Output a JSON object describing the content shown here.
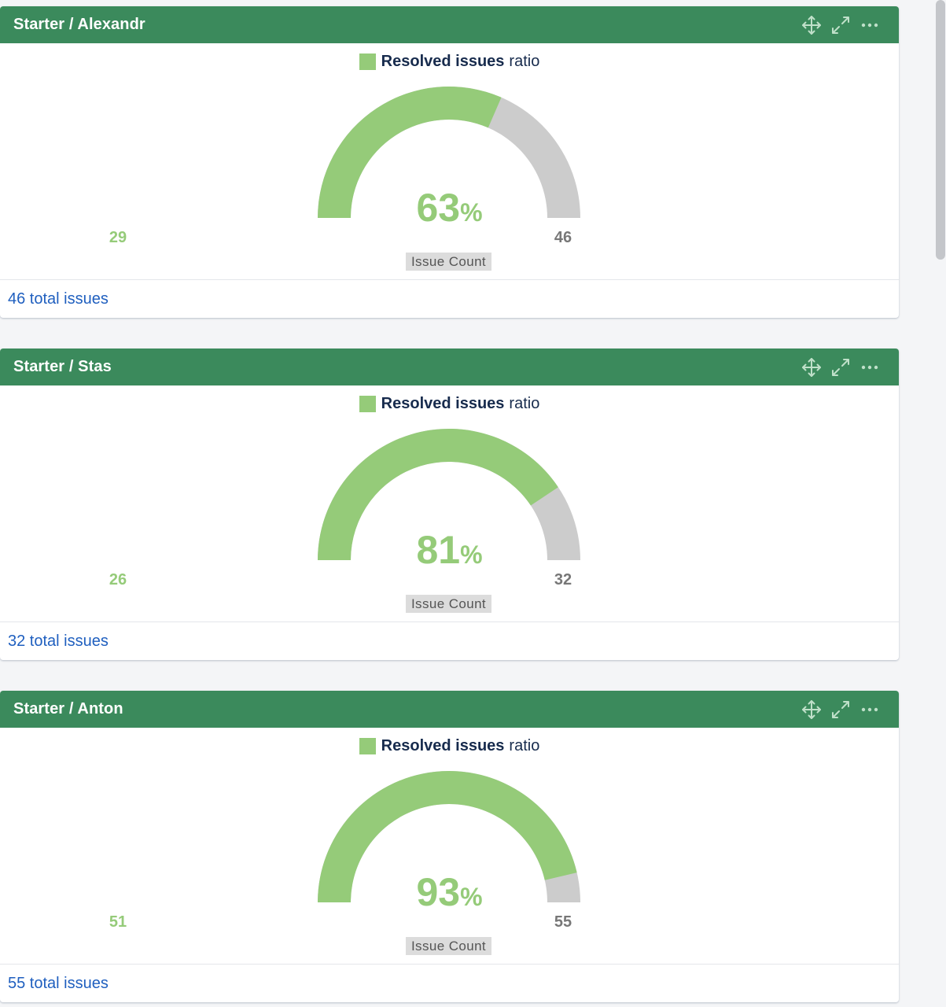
{
  "colors": {
    "header": "#3b8a5c",
    "resolved": "#95cb79",
    "remaining": "#cccccc",
    "link": "#1f5fbf"
  },
  "header_icons": [
    "move-icon",
    "expand-icon",
    "more-icon"
  ],
  "gadgets": [
    {
      "title": "Starter / Alexandr",
      "legend_strong": "Resolved issues",
      "legend_rest": "ratio",
      "percent": "63",
      "percent_sign": "%",
      "resolved": "29",
      "total": "46",
      "axis_label": "Issue Count",
      "footer_link": "46 total issues"
    },
    {
      "title": "Starter / Stas",
      "legend_strong": "Resolved issues",
      "legend_rest": "ratio",
      "percent": "81",
      "percent_sign": "%",
      "resolved": "26",
      "total": "32",
      "axis_label": "Issue Count",
      "footer_link": "32 total issues"
    },
    {
      "title": "Starter / Anton",
      "legend_strong": "Resolved issues",
      "legend_rest": "ratio",
      "percent": "93",
      "percent_sign": "%",
      "resolved": "51",
      "total": "55",
      "axis_label": "Issue Count",
      "footer_link": "55 total issues"
    }
  ],
  "chart_data": [
    {
      "type": "gauge",
      "title": "Resolved issues ratio",
      "min": 0,
      "max": 46,
      "value": 29,
      "percent": 63,
      "label": "Issue Count"
    },
    {
      "type": "gauge",
      "title": "Resolved issues ratio",
      "min": 0,
      "max": 32,
      "value": 26,
      "percent": 81,
      "label": "Issue Count"
    },
    {
      "type": "gauge",
      "title": "Resolved issues ratio",
      "min": 0,
      "max": 55,
      "value": 51,
      "percent": 93,
      "label": "Issue Count"
    }
  ]
}
